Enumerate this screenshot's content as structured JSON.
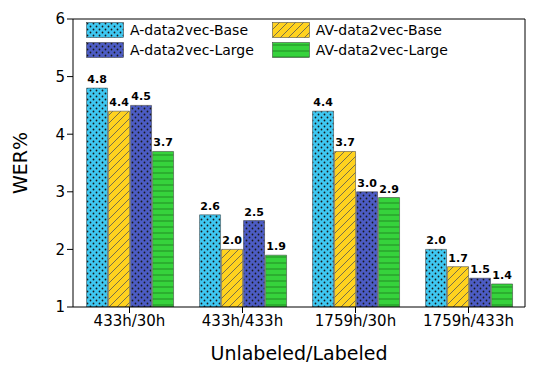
{
  "chart_data": {
    "type": "bar",
    "categories": [
      "433h/30h",
      "433h/433h",
      "1759h/30h",
      "1759h/433h"
    ],
    "x_label": "Unlabeled/Labeled",
    "y_label": "WER%",
    "ylim": [
      1,
      6
    ],
    "yticks": [
      1,
      2,
      3,
      4,
      5,
      6
    ],
    "grid": false,
    "legend": "top",
    "data_labels": true,
    "series": [
      {
        "name": "A-data2vec-Base",
        "color": "#3ec8f2",
        "values": [
          4.8,
          2.6,
          4.4,
          2.0
        ],
        "value_labels": [
          "4.8",
          "2.6",
          "4.4",
          "2.0"
        ]
      },
      {
        "name": "AV-data2vec-Base",
        "color": "#ffd21f",
        "values": [
          4.4,
          2.0,
          3.7,
          1.7
        ],
        "value_labels": [
          "4.4",
          "2.0",
          "3.7",
          "1.7"
        ]
      },
      {
        "name": "A-data2vec-Large",
        "color": "#4c5cc4",
        "values": [
          4.5,
          2.5,
          3.0,
          1.5
        ],
        "value_labels": [
          "4.5",
          "2.5",
          "3.0",
          "1.5"
        ]
      },
      {
        "name": "AV-data2vec-Large",
        "color": "#36d23c",
        "values": [
          3.7,
          1.9,
          2.9,
          1.4
        ],
        "value_labels": [
          "3.7",
          "1.9",
          "2.9",
          "1.4"
        ]
      }
    ]
  }
}
